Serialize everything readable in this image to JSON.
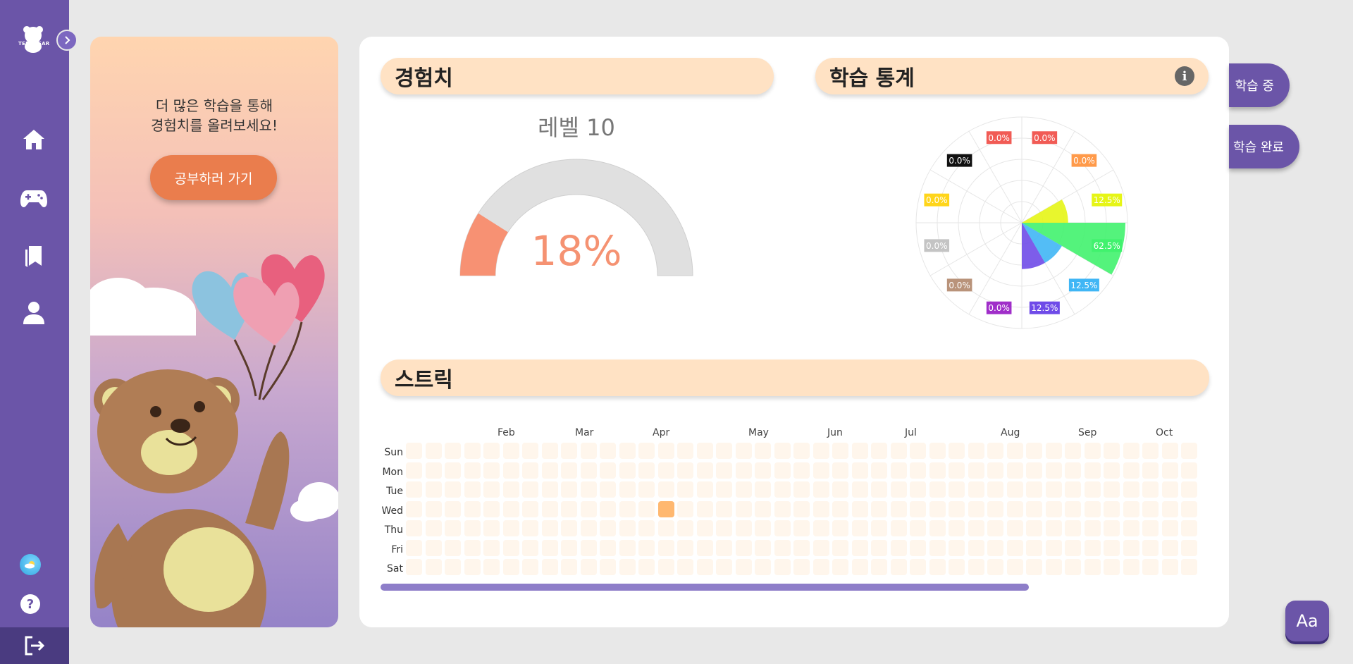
{
  "sidebar": {
    "logo_text": "TEDDBEAR",
    "nav": [
      "home-icon",
      "gamepad-icon",
      "bookmark-icon",
      "user-icon"
    ]
  },
  "promo": {
    "line1": "더 많은 학습을 통해",
    "line2": "경험치를 올려보세요!",
    "button": "공부하러 가기"
  },
  "experience": {
    "title": "경험치",
    "level": "레벨 10",
    "percent_text": "18%",
    "progress": 0.18,
    "colors": {
      "fill": "#f79173",
      "track": "#e0e0e0"
    }
  },
  "stats": {
    "title": "학습 통계",
    "info": "i",
    "labels": [
      "0.0%",
      "0.0%",
      "0.0%",
      "12.5%",
      "62.5%",
      "12.5%",
      "12.5%",
      "0.0%",
      "0.0%",
      "0.0%",
      "0.0%",
      "0.0%"
    ]
  },
  "tabs": {
    "in_progress": "학습 중",
    "completed": "학습 완료"
  },
  "streak": {
    "title": "스트릭",
    "months": [
      "Feb",
      "Mar",
      "Apr",
      "May",
      "Jun",
      "Jul",
      "Aug",
      "Sep",
      "Oct"
    ],
    "days": [
      "Sun",
      "Mon",
      "Tue",
      "Wed",
      "Thu",
      "Fri",
      "Sat"
    ]
  },
  "font_button": "Aa",
  "chart_data": {
    "type": "polar-area",
    "title": "",
    "categories": [
      "0.0%",
      "0.0%",
      "12.5%",
      "62.5%",
      "12.5%",
      "12.5%",
      "0.0%",
      "0.0%",
      "0.0%",
      "0.0%",
      "0.0%",
      "0.0%"
    ],
    "values": [
      0,
      0,
      12.5,
      62.5,
      12.5,
      12.5,
      0,
      0,
      0,
      0,
      0,
      0
    ],
    "colors": [
      "#f15b55",
      "#ff9a4a",
      "#e6f516",
      "#41f26e",
      "#40b6f5",
      "#6f4be8",
      "#a02ec9",
      "#b9937a",
      "#c4c4c4",
      "#ffd51a",
      "#111111",
      "#f15b55"
    ],
    "grid": true
  }
}
